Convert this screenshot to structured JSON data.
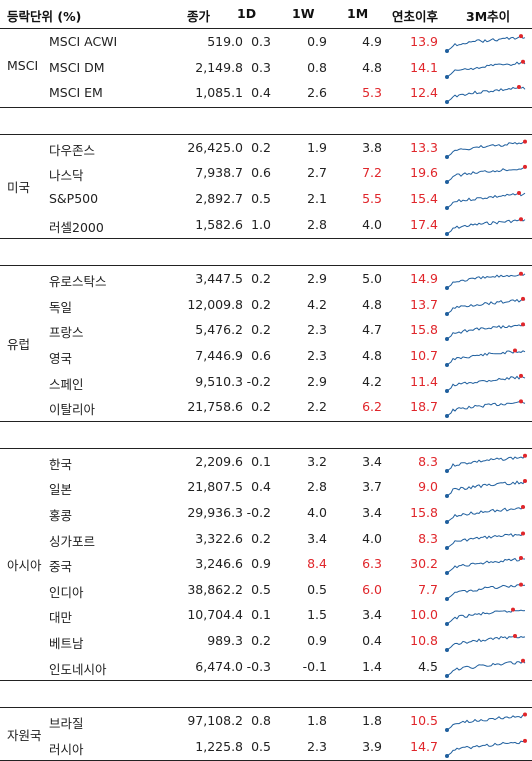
{
  "header": {
    "unit": "등락단위 (%)",
    "close": "종가",
    "d1": "1D",
    "w1": "1W",
    "m1": "1M",
    "ytd": "연초이후",
    "trend": "3M추이"
  },
  "accent_color": "#e0262b",
  "spark_color": "#1f5f9e",
  "groups": [
    {
      "region": "MSCI",
      "rows": [
        {
          "name": "MSCI ACWI",
          "close": "519.0",
          "d1": "0.3",
          "w1": "0.9",
          "m1": "4.9",
          "ytd": "13.9",
          "red": [
            "ytd"
          ]
        },
        {
          "name": "MSCI DM",
          "close": "2,149.8",
          "d1": "0.3",
          "w1": "0.8",
          "m1": "4.8",
          "ytd": "14.1",
          "red": [
            "ytd"
          ]
        },
        {
          "name": "MSCI EM",
          "close": "1,085.1",
          "d1": "0.4",
          "w1": "2.6",
          "m1": "5.3",
          "ytd": "12.4",
          "red": [
            "m1",
            "ytd"
          ]
        }
      ]
    },
    {
      "region": "미국",
      "rows": [
        {
          "name": "다우존스",
          "close": "26,425.0",
          "d1": "0.2",
          "w1": "1.9",
          "m1": "3.8",
          "ytd": "13.3",
          "red": [
            "ytd"
          ]
        },
        {
          "name": "나스닥",
          "close": "7,938.7",
          "d1": "0.6",
          "w1": "2.7",
          "m1": "7.2",
          "ytd": "19.6",
          "red": [
            "m1",
            "ytd"
          ]
        },
        {
          "name": "S&P500",
          "close": "2,892.7",
          "d1": "0.5",
          "w1": "2.1",
          "m1": "5.5",
          "ytd": "15.4",
          "red": [
            "m1",
            "ytd"
          ]
        },
        {
          "name": "러셀2000",
          "close": "1,582.6",
          "d1": "1.0",
          "w1": "2.8",
          "m1": "4.0",
          "ytd": "17.4",
          "red": [
            "ytd"
          ]
        }
      ]
    },
    {
      "region": "유럽",
      "rows": [
        {
          "name": "유로스탁스",
          "close": "3,447.5",
          "d1": "0.2",
          "w1": "2.9",
          "m1": "5.0",
          "ytd": "14.9",
          "red": [
            "ytd"
          ]
        },
        {
          "name": "독일",
          "close": "12,009.8",
          "d1": "0.2",
          "w1": "4.2",
          "m1": "4.8",
          "ytd": "13.7",
          "red": [
            "ytd"
          ]
        },
        {
          "name": "프랑스",
          "close": "5,476.2",
          "d1": "0.2",
          "w1": "2.3",
          "m1": "4.7",
          "ytd": "15.8",
          "red": [
            "ytd"
          ]
        },
        {
          "name": "영국",
          "close": "7,446.9",
          "d1": "0.6",
          "w1": "2.3",
          "m1": "4.8",
          "ytd": "10.7",
          "red": [
            "ytd"
          ]
        },
        {
          "name": "스페인",
          "close": "9,510.3",
          "d1": "-0.2",
          "w1": "2.9",
          "m1": "4.2",
          "ytd": "11.4",
          "red": [
            "ytd"
          ]
        },
        {
          "name": "이탈리아",
          "close": "21,758.6",
          "d1": "0.2",
          "w1": "2.2",
          "m1": "6.2",
          "ytd": "18.7",
          "red": [
            "m1",
            "ytd"
          ]
        }
      ]
    },
    {
      "region": "아시아",
      "rows": [
        {
          "name": "한국",
          "close": "2,209.6",
          "d1": "0.1",
          "w1": "3.2",
          "m1": "3.4",
          "ytd": "8.3",
          "red": [
            "ytd"
          ]
        },
        {
          "name": "일본",
          "close": "21,807.5",
          "d1": "0.4",
          "w1": "2.8",
          "m1": "3.7",
          "ytd": "9.0",
          "red": [
            "ytd"
          ]
        },
        {
          "name": "홍콩",
          "close": "29,936.3",
          "d1": "-0.2",
          "w1": "4.0",
          "m1": "3.4",
          "ytd": "15.8",
          "red": [
            "ytd"
          ]
        },
        {
          "name": "싱가포르",
          "close": "3,322.6",
          "d1": "0.2",
          "w1": "3.4",
          "m1": "4.0",
          "ytd": "8.3",
          "red": [
            "ytd"
          ]
        },
        {
          "name": "중국",
          "close": "3,246.6",
          "d1": "0.9",
          "w1": "8.4",
          "m1": "6.3",
          "ytd": "30.2",
          "red": [
            "w1",
            "m1",
            "ytd"
          ]
        },
        {
          "name": "인디아",
          "close": "38,862.2",
          "d1": "0.5",
          "w1": "0.5",
          "m1": "6.0",
          "ytd": "7.7",
          "red": [
            "m1",
            "ytd"
          ]
        },
        {
          "name": "대만",
          "close": "10,704.4",
          "d1": "0.1",
          "w1": "1.5",
          "m1": "3.4",
          "ytd": "10.0",
          "red": [
            "ytd"
          ]
        },
        {
          "name": "베트남",
          "close": "989.3",
          "d1": "0.2",
          "w1": "0.9",
          "m1": "0.4",
          "ytd": "10.8",
          "red": [
            "ytd"
          ]
        },
        {
          "name": "인도네시아",
          "close": "6,474.0",
          "d1": "-0.3",
          "w1": "-0.1",
          "m1": "1.4",
          "ytd": "4.5",
          "red": []
        }
      ]
    },
    {
      "region": "자원국",
      "rows": [
        {
          "name": "브라질",
          "close": "97,108.2",
          "d1": "0.8",
          "w1": "1.8",
          "m1": "1.8",
          "ytd": "10.5",
          "red": [
            "ytd"
          ]
        },
        {
          "name": "러시아",
          "close": "1,225.8",
          "d1": "0.5",
          "w1": "2.3",
          "m1": "3.9",
          "ytd": "14.7",
          "red": [
            "ytd"
          ]
        }
      ]
    }
  ]
}
